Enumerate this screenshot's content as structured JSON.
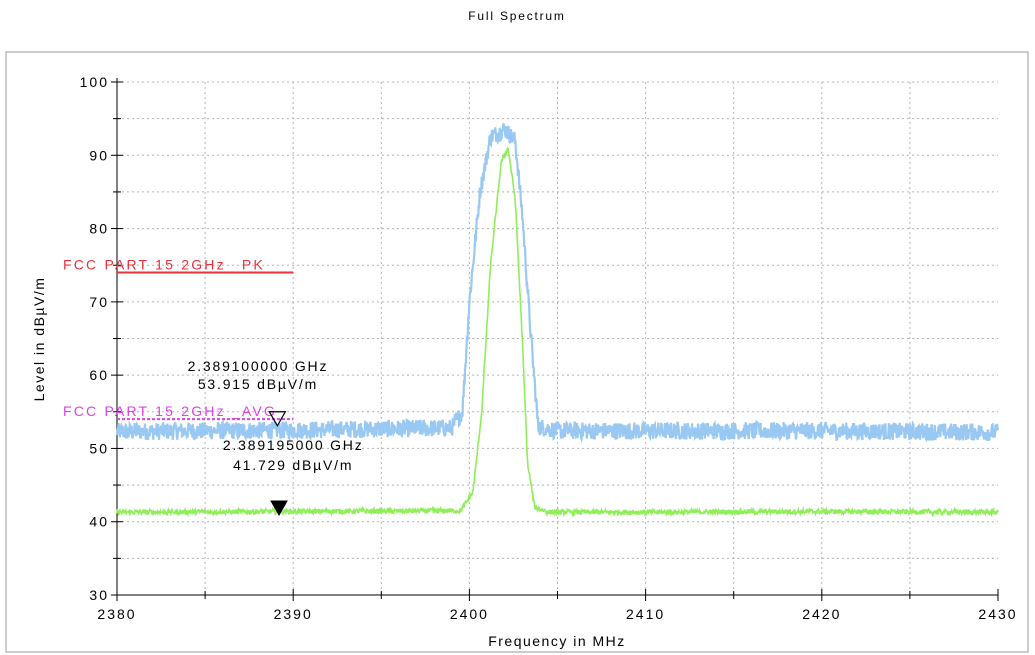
{
  "chart_data": {
    "type": "line",
    "title": "Full Spectrum",
    "xlabel": "Frequency in MHz",
    "ylabel": "Level in dBµV/m",
    "xlim": [
      2380,
      2430
    ],
    "ylim": [
      30,
      100
    ],
    "x_ticks": [
      "2380",
      "2390",
      "2400",
      "2410",
      "2420",
      "2430"
    ],
    "y_ticks": [
      "30",
      "40",
      "50",
      "60",
      "70",
      "80",
      "90",
      "100"
    ],
    "grid": true,
    "series": [
      {
        "color": "#99c8f2",
        "points": [
          [
            2380,
            52.3
          ],
          [
            2390,
            52.5
          ],
          [
            2399.0,
            52.8
          ],
          [
            2399.6,
            55
          ],
          [
            2400.0,
            70
          ],
          [
            2400.6,
            85
          ],
          [
            2401.2,
            92.5
          ],
          [
            2402.0,
            93.6
          ],
          [
            2402.6,
            92
          ],
          [
            2403.0,
            82
          ],
          [
            2403.5,
            65
          ],
          [
            2403.9,
            53
          ],
          [
            2405,
            52.4
          ],
          [
            2410,
            52.4
          ],
          [
            2420,
            52.4
          ],
          [
            2430,
            52.2
          ]
        ],
        "noise": 1.2
      },
      {
        "color": "#90ee5a",
        "points": [
          [
            2380,
            41.3
          ],
          [
            2390,
            41.4
          ],
          [
            2399.5,
            41.5
          ],
          [
            2400.2,
            44
          ],
          [
            2400.7,
            55
          ],
          [
            2401.2,
            75
          ],
          [
            2401.8,
            89
          ],
          [
            2402.2,
            91
          ],
          [
            2402.6,
            84
          ],
          [
            2403.0,
            65
          ],
          [
            2403.3,
            48
          ],
          [
            2403.7,
            42
          ],
          [
            2404.5,
            41.3
          ],
          [
            2410,
            41.3
          ],
          [
            2420,
            41.4
          ],
          [
            2430,
            41.3
          ]
        ],
        "noise": 0.35
      }
    ],
    "limit_lines": [
      {
        "name": "FCC PART 15 2GHz _PK",
        "y": 74,
        "color": "#e8323c",
        "x_range": [
          2380,
          2390
        ]
      },
      {
        "name": "FCC PART 15 2GHz _AVG",
        "y": 54,
        "color": "#e040e8",
        "x_range": [
          2380,
          2390
        ]
      }
    ],
    "markers": [
      {
        "freq": "2.389100000 GHz",
        "level": "53.915 dBµV/m",
        "x": 2389.1,
        "y": 53.915,
        "style": "hollow"
      },
      {
        "freq": "2.389195000 GHz",
        "level": "41.729 dBµV/m",
        "x": 2389.195,
        "y": 41.729,
        "style": "filled"
      }
    ]
  }
}
